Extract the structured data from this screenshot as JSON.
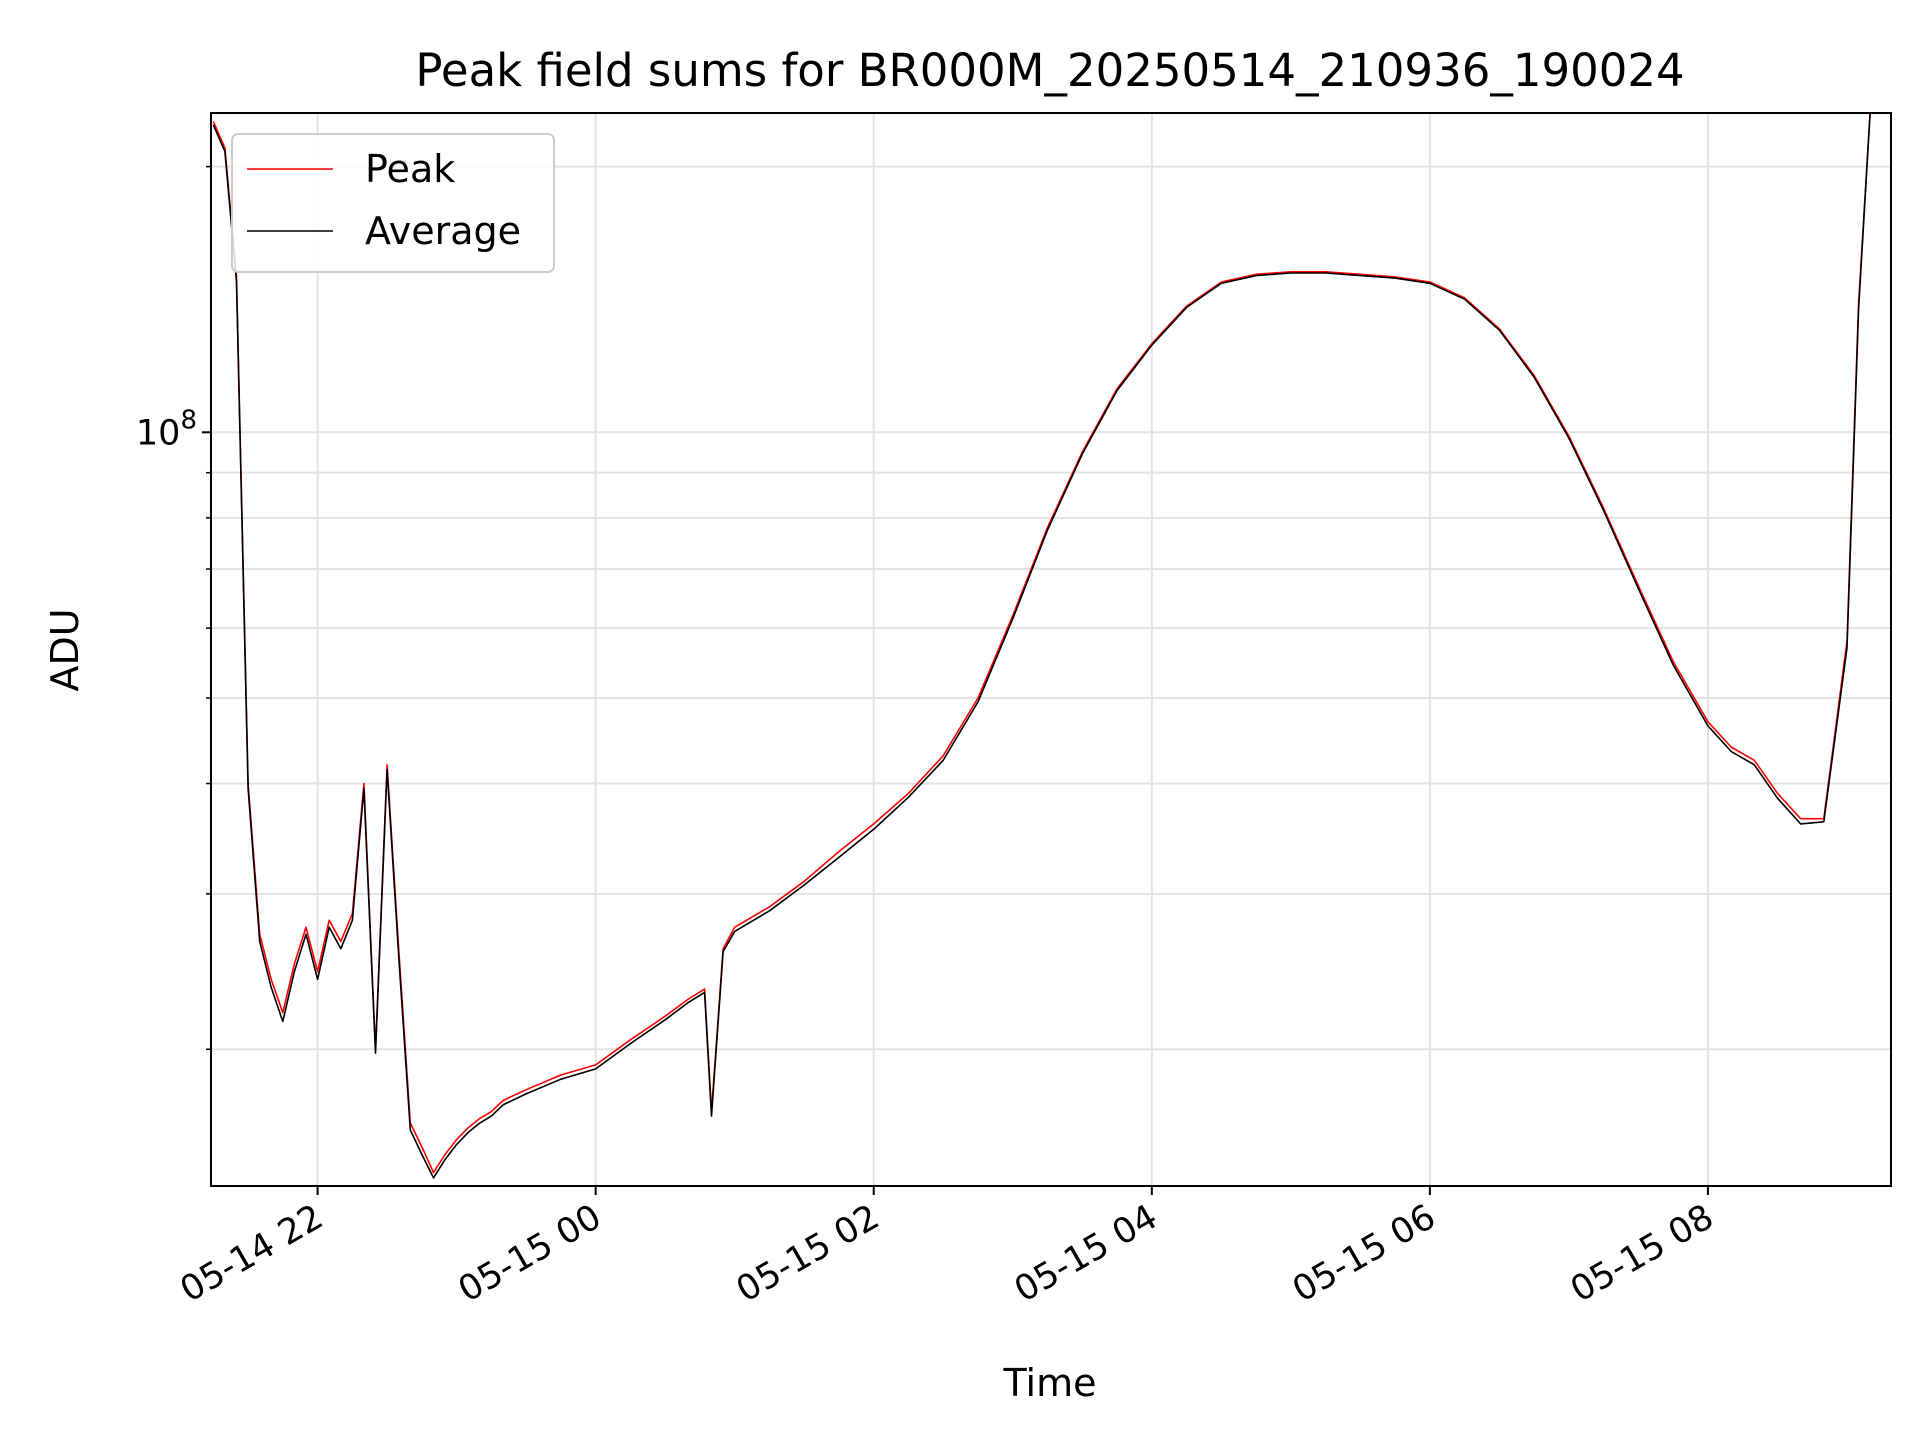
{
  "chart_data": {
    "type": "line",
    "title": "Peak field sums for BR000M_20250514_210936_190024",
    "xlabel": "Time",
    "ylabel": "ADU",
    "x_tick_labels": [
      "05-14 22",
      "05-15 00",
      "05-15 02",
      "05-15 04",
      "05-15 06",
      "05-15 08"
    ],
    "y_tick_major_label": "10^8",
    "y_scale": "log",
    "ylim": [
      14000000,
      230000000
    ],
    "xlim": [
      "2025-05-14 21:14",
      "2025-05-15 09:19"
    ],
    "grid": true,
    "legend_position": "top-left",
    "colors": {
      "Peak": "#ff0000",
      "Average": "#000000"
    },
    "x": [
      "2025-05-14 21:15",
      "2025-05-14 21:20",
      "2025-05-14 21:25",
      "2025-05-14 21:30",
      "2025-05-14 21:35",
      "2025-05-14 21:40",
      "2025-05-14 21:45",
      "2025-05-14 21:50",
      "2025-05-14 21:55",
      "2025-05-14 22:00",
      "2025-05-14 22:05",
      "2025-05-14 22:10",
      "2025-05-14 22:15",
      "2025-05-14 22:20",
      "2025-05-14 22:25",
      "2025-05-14 22:30",
      "2025-05-14 22:35",
      "2025-05-14 22:40",
      "2025-05-14 22:45",
      "2025-05-14 22:50",
      "2025-05-14 22:55",
      "2025-05-14 23:00",
      "2025-05-14 23:05",
      "2025-05-14 23:10",
      "2025-05-14 23:15",
      "2025-05-14 23:20",
      "2025-05-14 23:30",
      "2025-05-14 23:45",
      "2025-05-15 00:00",
      "2025-05-15 00:15",
      "2025-05-15 00:30",
      "2025-05-15 00:40",
      "2025-05-15 00:47",
      "2025-05-15 00:50",
      "2025-05-15 00:55",
      "2025-05-15 01:00",
      "2025-05-15 01:15",
      "2025-05-15 01:30",
      "2025-05-15 01:45",
      "2025-05-15 02:00",
      "2025-05-15 02:15",
      "2025-05-15 02:30",
      "2025-05-15 02:45",
      "2025-05-15 03:00",
      "2025-05-15 03:15",
      "2025-05-15 03:30",
      "2025-05-15 03:45",
      "2025-05-15 04:00",
      "2025-05-15 04:15",
      "2025-05-15 04:30",
      "2025-05-15 04:45",
      "2025-05-15 05:00",
      "2025-05-15 05:15",
      "2025-05-15 05:30",
      "2025-05-15 05:45",
      "2025-05-15 06:00",
      "2025-05-15 06:15",
      "2025-05-15 06:30",
      "2025-05-15 06:45",
      "2025-05-15 07:00",
      "2025-05-15 07:15",
      "2025-05-15 07:30",
      "2025-05-15 07:45",
      "2025-05-15 08:00",
      "2025-05-15 08:10",
      "2025-05-15 08:20",
      "2025-05-15 08:30",
      "2025-05-15 08:40",
      "2025-05-15 08:50",
      "2025-05-15 09:00",
      "2025-05-15 09:05",
      "2025-05-15 09:10"
    ],
    "series": [
      {
        "name": "Peak",
        "values": [
          225000000,
          210000000,
          150000000,
          40000000,
          27000000,
          24000000,
          22000000,
          25000000,
          27500000,
          24500000,
          28000000,
          26500000,
          28500000,
          40000000,
          20000000,
          42000000,
          26000000,
          16500000,
          15500000,
          14500000,
          15200000,
          15800000,
          16300000,
          16700000,
          17000000,
          17500000,
          18000000,
          18700000,
          19200000,
          20500000,
          21800000,
          22800000,
          23400000,
          17000000,
          26000000,
          27500000,
          29000000,
          31000000,
          33500000,
          36000000,
          39000000,
          43000000,
          50000000,
          62000000,
          78000000,
          95000000,
          112000000,
          126000000,
          139000000,
          148000000,
          151000000,
          152000000,
          152000000,
          151000000,
          150000000,
          148000000,
          142000000,
          131000000,
          116000000,
          99000000,
          82000000,
          67000000,
          55000000,
          47000000,
          44000000,
          42500000,
          39000000,
          36500000,
          36500000,
          58000000,
          140000000,
          235000000
        ]
      },
      {
        "name": "Average",
        "values": [
          223000000,
          208000000,
          148000000,
          39500000,
          26500000,
          23500000,
          21500000,
          24500000,
          27000000,
          24000000,
          27500000,
          26000000,
          28000000,
          39500000,
          19800000,
          41500000,
          25500000,
          16200000,
          15200000,
          14300000,
          15000000,
          15600000,
          16100000,
          16500000,
          16800000,
          17300000,
          17800000,
          18500000,
          19000000,
          20300000,
          21600000,
          22600000,
          23200000,
          16800000,
          25800000,
          27200000,
          28700000,
          30700000,
          33000000,
          35500000,
          38600000,
          42500000,
          49500000,
          61500000,
          77500000,
          94500000,
          111500000,
          125500000,
          138500000,
          147500000,
          150500000,
          151500000,
          151500000,
          150500000,
          149500000,
          147500000,
          141500000,
          130500000,
          115500000,
          98500000,
          81500000,
          66500000,
          54500000,
          46500000,
          43500000,
          42000000,
          38500000,
          36000000,
          36200000,
          57000000,
          138000000,
          232000000
        ]
      }
    ]
  }
}
